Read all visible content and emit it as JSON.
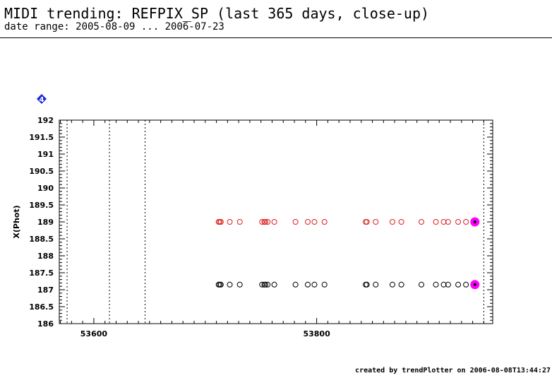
{
  "header": {
    "title": "MIDI trending: REFPIX_SP (last 365 days, close-up)",
    "subtitle": "date range: 2005-08-09 ... 2006-07-23"
  },
  "footer": {
    "credit": "created by trendPlotter on 2006-08-08T13:44:27"
  },
  "badge": {
    "label": "4",
    "icon": "blue-diamond-marker-icon",
    "color": "#1a2ad6"
  },
  "chart_data": {
    "type": "scatter",
    "ylabel": "X(Phot)",
    "xlabel": "",
    "xlim": [
      53569,
      53958
    ],
    "ylim": [
      186,
      192
    ],
    "x_ticks": [
      53600,
      53800
    ],
    "y_ticks": [
      186,
      186.5,
      187,
      187.5,
      188,
      188.5,
      189,
      189.5,
      190,
      190.5,
      191,
      191.5,
      192
    ],
    "grid": false,
    "vertical_markers": [
      53576,
      53614,
      53646,
      53950
    ],
    "series": [
      {
        "color": "#e02020",
        "marker": "open-circle",
        "x": [
          53712,
          53713,
          53714,
          53722,
          53731,
          53751,
          53753,
          53754,
          53756,
          53762,
          53781,
          53792,
          53798,
          53807,
          53844,
          53845,
          53853,
          53868,
          53876,
          53894,
          53907,
          53914,
          53918,
          53927,
          53934
        ],
        "y": [
          189,
          189,
          189,
          189,
          189,
          189,
          189,
          189,
          189,
          189,
          189,
          189,
          189,
          189,
          189,
          189,
          189,
          189,
          189,
          189,
          189,
          189,
          189,
          189,
          189
        ]
      },
      {
        "color": "#000000",
        "marker": "open-circle",
        "x": [
          53712,
          53713,
          53714,
          53722,
          53731,
          53751,
          53753,
          53754,
          53756,
          53762,
          53781,
          53792,
          53798,
          53807,
          53844,
          53845,
          53853,
          53868,
          53876,
          53894,
          53907,
          53914,
          53918,
          53927,
          53934
        ],
        "y": [
          187.15,
          187.15,
          187.15,
          187.15,
          187.15,
          187.15,
          187.15,
          187.15,
          187.15,
          187.15,
          187.15,
          187.15,
          187.15,
          187.15,
          187.15,
          187.15,
          187.15,
          187.15,
          187.15,
          187.15,
          187.15,
          187.15,
          187.15,
          187.15,
          187.15
        ]
      }
    ],
    "highlights": [
      {
        "x": 53942,
        "y": 189,
        "color": "#ff00ff",
        "marker": "filled-circle-with-dot"
      },
      {
        "x": 53942,
        "y": 187.15,
        "color": "#ff00ff",
        "marker": "filled-circle-with-dot"
      }
    ]
  }
}
